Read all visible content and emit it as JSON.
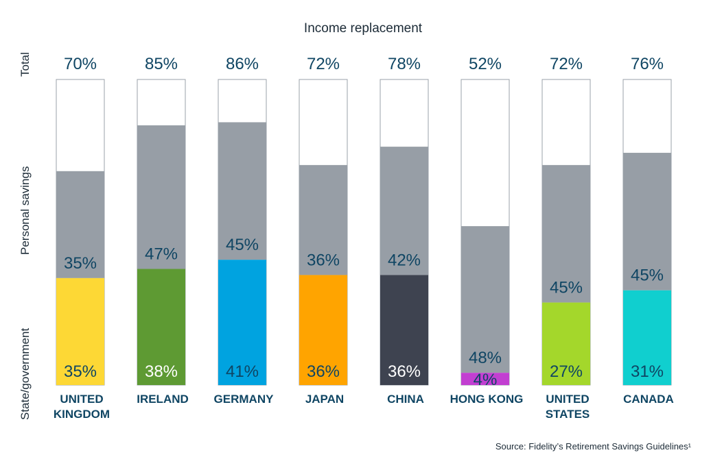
{
  "chart_data": {
    "type": "bar",
    "stacked": true,
    "title": "Income replacement",
    "ylabel_segments": [
      "State/government",
      "Personal savings",
      "Total"
    ],
    "categories": [
      [
        "UNITED",
        "KINGDOM"
      ],
      [
        "IRELAND"
      ],
      [
        "GERMANY"
      ],
      [
        "JAPAN"
      ],
      [
        "CHINA"
      ],
      [
        "HONG KONG"
      ],
      [
        "UNITED",
        "STATES"
      ],
      [
        "CANADA"
      ]
    ],
    "series": [
      {
        "name": "State/government",
        "values": [
          35,
          38,
          41,
          36,
          36,
          4,
          27,
          31
        ],
        "colors": [
          "#fdd835",
          "#5e9a33",
          "#00a3e0",
          "#ffa400",
          "#3e4350",
          "#c23fd1",
          "#a4d72b",
          "#10cfcf"
        ],
        "label_colors": [
          "#0f4563",
          "#ffffff",
          "#0f4563",
          "#0f4563",
          "#ffffff",
          "#0f4563",
          "#0f4563",
          "#0f4563"
        ]
      },
      {
        "name": "Personal savings",
        "values": [
          35,
          47,
          45,
          36,
          42,
          48,
          45,
          45
        ],
        "color": "#979ea6",
        "label_color": "#0f4563"
      }
    ],
    "totals": [
      70,
      85,
      86,
      72,
      78,
      52,
      72,
      76
    ],
    "value_suffix": "%",
    "ylim": [
      0,
      100
    ],
    "grid": false,
    "legend": "none",
    "source": "Source: Fidelity’s Retirement Savings Guidelines¹"
  }
}
